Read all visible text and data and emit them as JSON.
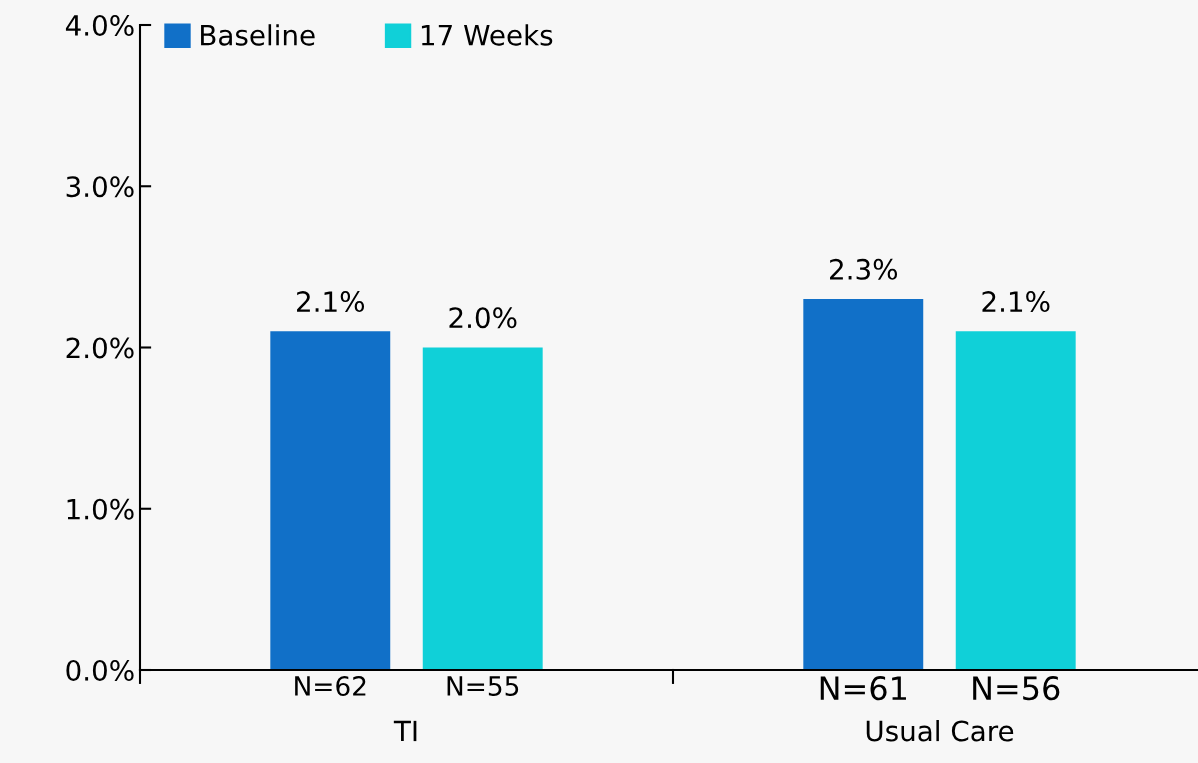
{
  "chart_data": {
    "type": "bar",
    "categories": [
      "TI",
      "Usual Care"
    ],
    "series": [
      {
        "name": "Baseline",
        "color": "#1170c8",
        "values": [
          2.1,
          2.3
        ],
        "value_labels": [
          "2.1%",
          "2.3%"
        ]
      },
      {
        "name": "17 Weeks",
        "color": "#10d0d8",
        "values": [
          2.0,
          2.1
        ],
        "value_labels": [
          "2.0%",
          "2.1%"
        ]
      }
    ],
    "ylim": [
      0,
      4
    ],
    "yticks": [
      {
        "value": 0,
        "label": "0.0%"
      },
      {
        "value": 1,
        "label": "1.0%"
      },
      {
        "value": 2,
        "label": "2.0%"
      },
      {
        "value": 3,
        "label": "3.0%"
      },
      {
        "value": 4,
        "label": "4.0%"
      }
    ],
    "annotations": [
      "N=62",
      "N=55",
      "N=61",
      "N=56"
    ],
    "grid": false,
    "legend": "top left"
  }
}
